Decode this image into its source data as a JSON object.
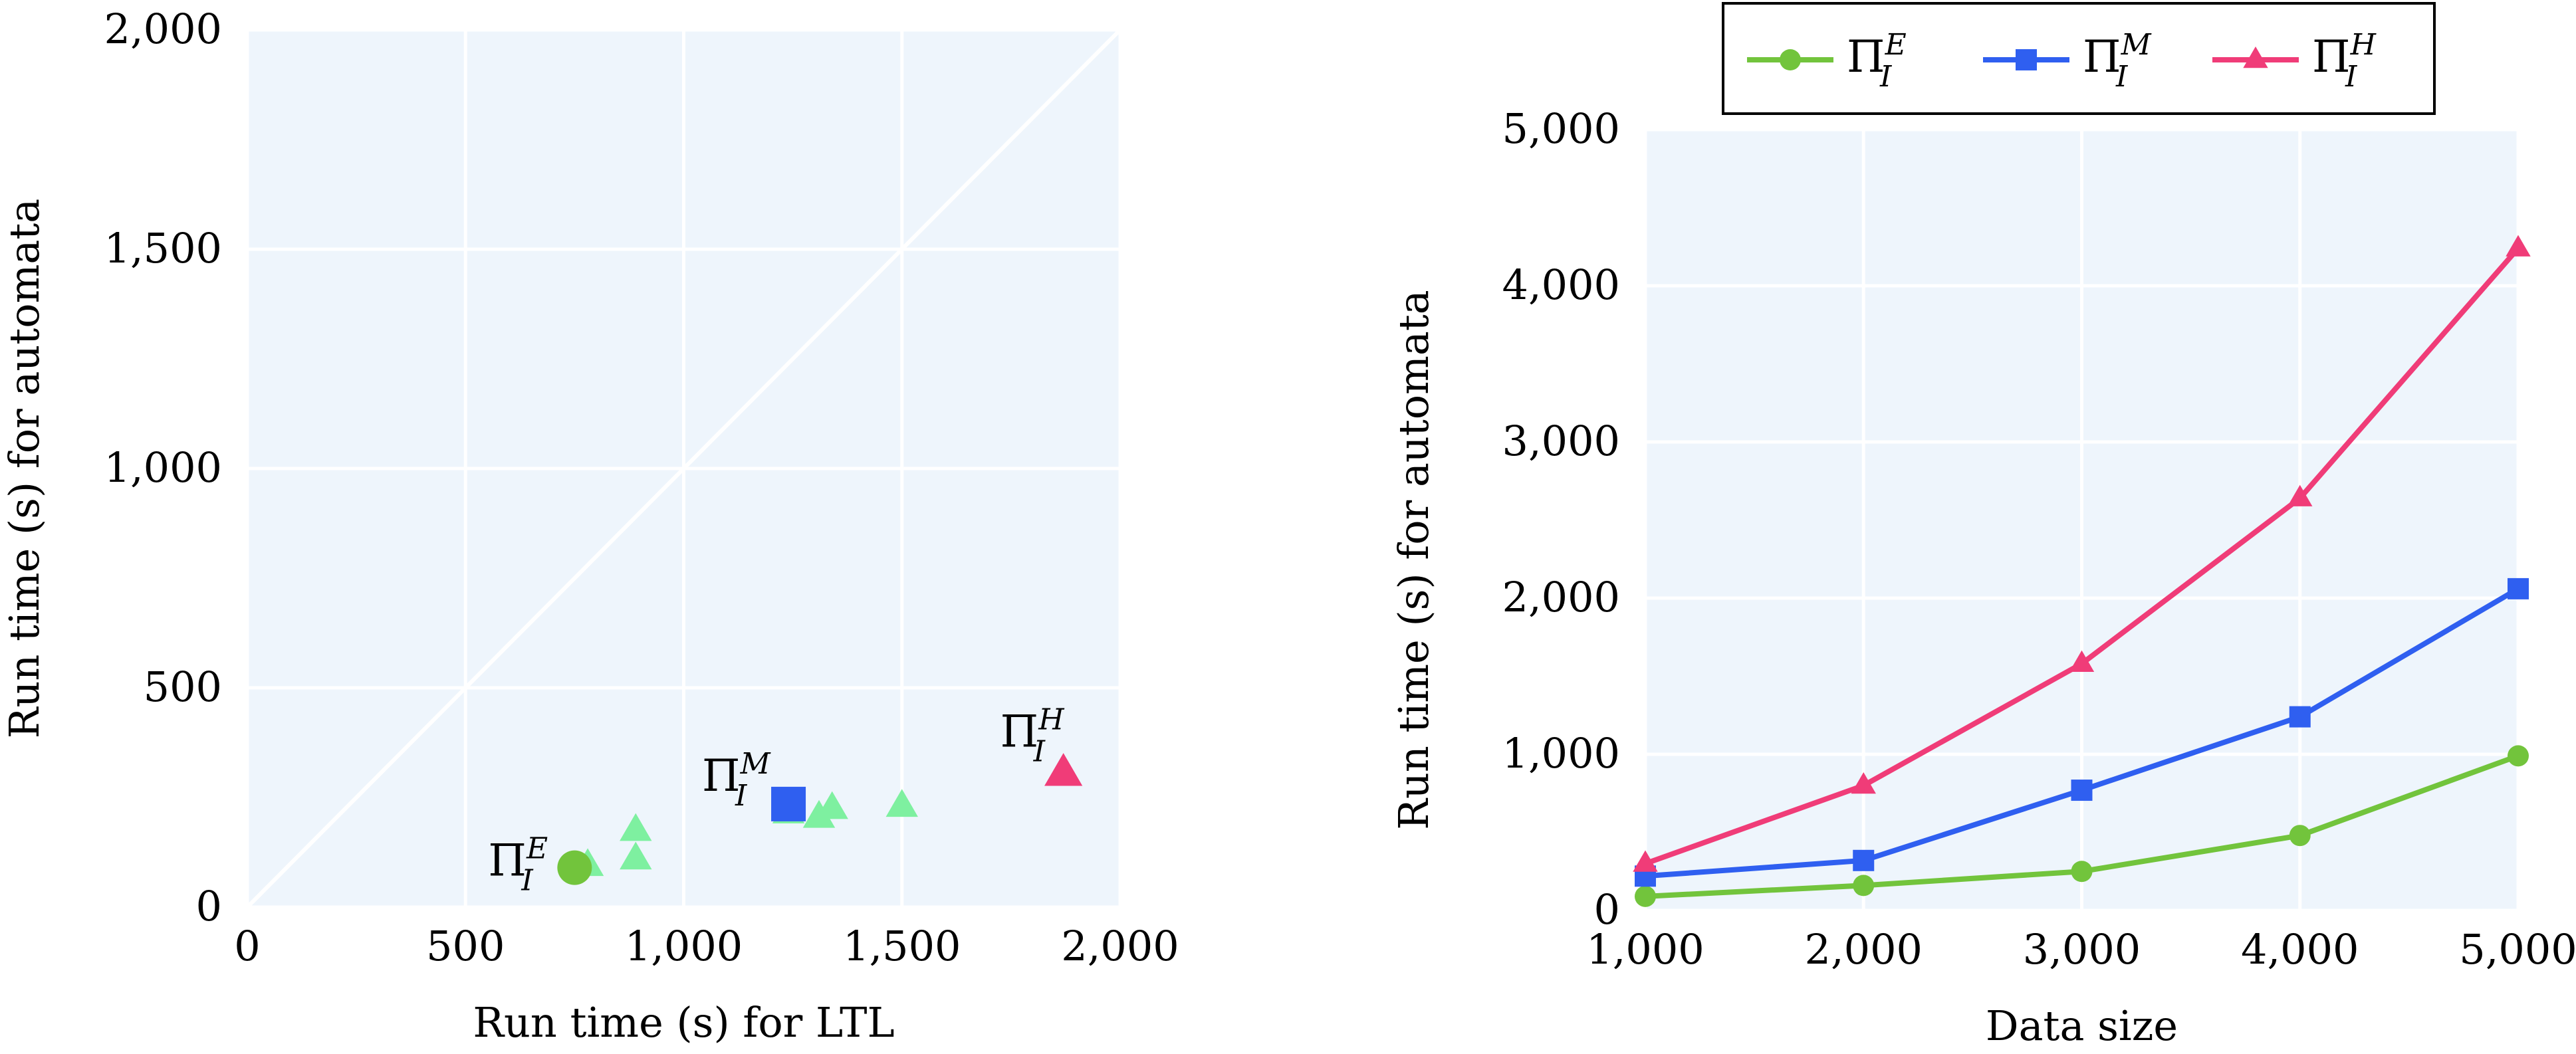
{
  "chart_data": [
    {
      "type": "scatter",
      "xlabel": "Run time (s) for LTL",
      "ylabel": "Run time (s) for automata",
      "xlim": [
        0,
        2000
      ],
      "ylim": [
        0,
        2000
      ],
      "xticks": [
        "0",
        "500",
        "1,000",
        "1,500",
        "2,000"
      ],
      "yticks": [
        "0",
        "500",
        "1,000",
        "1,500",
        "2,000"
      ],
      "grid": true,
      "diagonal": true,
      "background_color": "#eef5fc",
      "points": [
        {
          "x": 780,
          "y": 95,
          "marker": "triangle",
          "color": "#7ef0a0"
        },
        {
          "x": 890,
          "y": 175,
          "marker": "triangle",
          "color": "#7ef0a0"
        },
        {
          "x": 890,
          "y": 110,
          "marker": "triangle",
          "color": "#7ef0a0"
        },
        {
          "x": 1240,
          "y": 215,
          "marker": "triangle",
          "color": "#7ef0a0"
        },
        {
          "x": 1310,
          "y": 205,
          "marker": "triangle",
          "color": "#7ef0a0"
        },
        {
          "x": 1340,
          "y": 225,
          "marker": "triangle",
          "color": "#7ef0a0"
        },
        {
          "x": 1500,
          "y": 230,
          "marker": "triangle",
          "color": "#7ef0a0"
        },
        {
          "x": 750,
          "y": 90,
          "marker": "circle",
          "color": "#72c43c",
          "label": "Π",
          "sub": "I",
          "sup": "E"
        },
        {
          "x": 1240,
          "y": 235,
          "marker": "square",
          "color": "#2f5ff0",
          "label": "Π",
          "sub": "I",
          "sup": "M"
        },
        {
          "x": 1870,
          "y": 305,
          "marker": "triangle",
          "color": "#f03c78",
          "label": "Π",
          "sub": "I",
          "sup": "H"
        }
      ]
    },
    {
      "type": "line",
      "xlabel": "Data size",
      "ylabel": "Run time (s) for automata",
      "xlim": [
        1000,
        5000
      ],
      "ylim": [
        0,
        5000
      ],
      "xticks": [
        "1,000",
        "2,000",
        "3,000",
        "4,000",
        "5,000"
      ],
      "yticks": [
        "0",
        "1,000",
        "2,000",
        "3,000",
        "4,000",
        "5,000"
      ],
      "grid": true,
      "legend_position": "top",
      "background_color": "#eef5fc",
      "x": [
        1000,
        2000,
        3000,
        4000,
        5000
      ],
      "series": [
        {
          "name": "Π",
          "sub": "I",
          "sup": "E",
          "marker": "circle",
          "color": "#72c43c",
          "values": [
            90,
            160,
            250,
            480,
            990
          ]
        },
        {
          "name": "Π",
          "sub": "I",
          "sup": "M",
          "marker": "square",
          "color": "#2f5ff0",
          "values": [
            220,
            320,
            770,
            1240,
            2060
          ]
        },
        {
          "name": "Π",
          "sub": "I",
          "sup": "H",
          "marker": "triangle",
          "color": "#f03c78",
          "values": [
            300,
            800,
            1580,
            2640,
            4240
          ]
        }
      ]
    }
  ]
}
